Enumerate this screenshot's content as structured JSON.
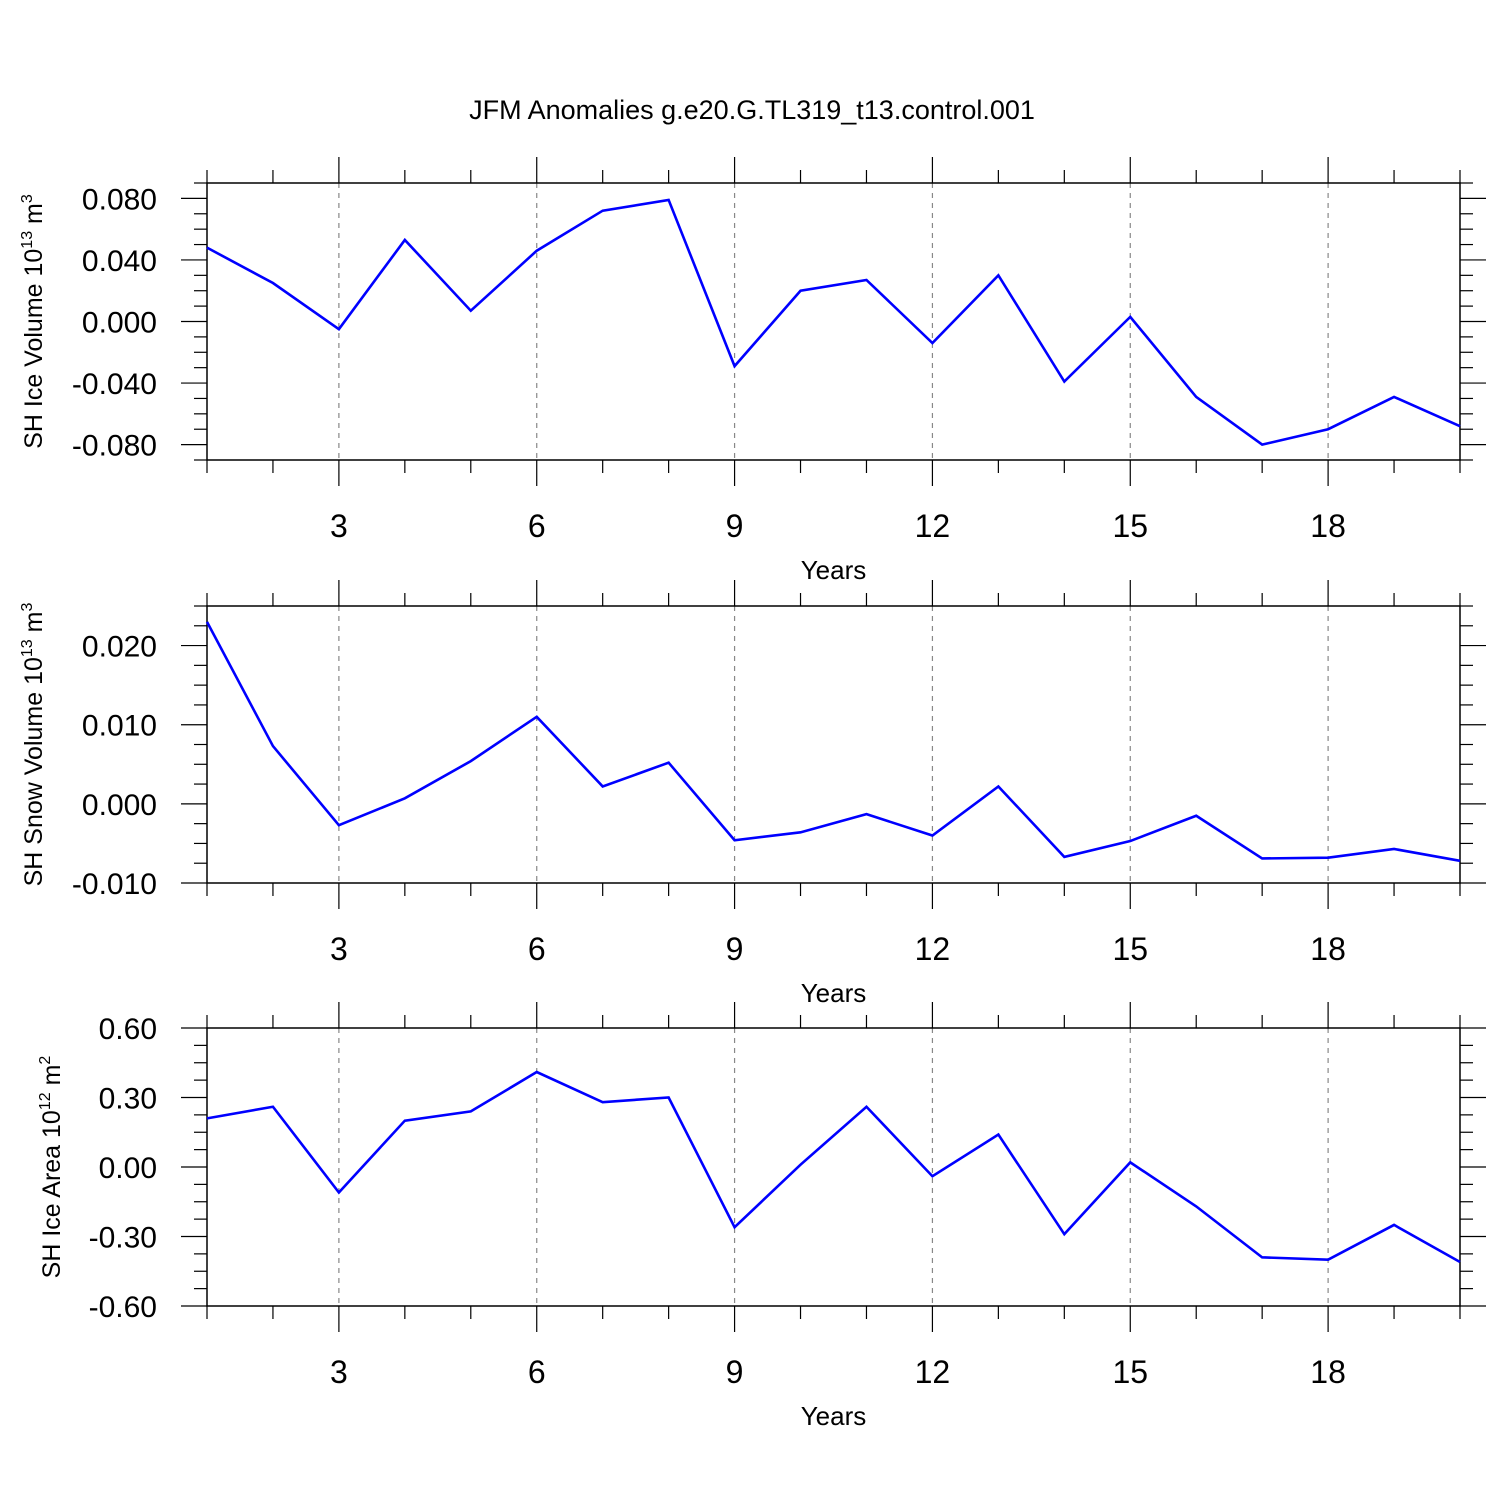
{
  "figure_title": "JFM Anomalies g.e20.G.TL319_t13.control.001",
  "line_color": "#0000ff",
  "chart_data": [
    {
      "type": "line",
      "title": "",
      "xlabel": "Years",
      "ylabel_main": "SH Ice Volume 10",
      "ylabel_exp": "13",
      "ylabel_unit": " m",
      "ylabel_unit_exp": "3",
      "xlim": [
        1,
        20
      ],
      "ylim": [
        -0.09,
        0.09
      ],
      "x_ticks": [
        3,
        6,
        9,
        12,
        15,
        18
      ],
      "x_tick_labels": [
        "3",
        "6",
        "9",
        "12",
        "15",
        "18"
      ],
      "y_ticks": [
        -0.08,
        -0.04,
        0.0,
        0.04,
        0.08
      ],
      "y_tick_labels": [
        "-0.080",
        "-0.040",
        "0.000",
        "0.040",
        "0.080"
      ],
      "grid": "x-dashed",
      "x": [
        1,
        2,
        3,
        4,
        5,
        6,
        7,
        8,
        9,
        10,
        11,
        12,
        13,
        14,
        15,
        16,
        17,
        18,
        19,
        20
      ],
      "series": [
        {
          "values": [
            0.048,
            0.025,
            -0.005,
            0.053,
            0.007,
            0.046,
            0.072,
            0.079,
            -0.029,
            0.02,
            0.027,
            -0.014,
            0.03,
            -0.039,
            0.003,
            -0.049,
            -0.08,
            -0.07,
            -0.049,
            -0.068
          ]
        }
      ]
    },
    {
      "type": "line",
      "title": "",
      "xlabel": "Years",
      "ylabel_main": "SH Snow Volume 10",
      "ylabel_exp": "13",
      "ylabel_unit": " m",
      "ylabel_unit_exp": "3",
      "xlim": [
        1,
        20
      ],
      "ylim": [
        -0.01,
        0.025
      ],
      "x_ticks": [
        3,
        6,
        9,
        12,
        15,
        18
      ],
      "x_tick_labels": [
        "3",
        "6",
        "9",
        "12",
        "15",
        "18"
      ],
      "y_ticks": [
        -0.01,
        0.0,
        0.01,
        0.02
      ],
      "y_tick_labels": [
        "-0.010",
        "0.000",
        "0.010",
        "0.020"
      ],
      "grid": "x-dashed",
      "x": [
        1,
        2,
        3,
        4,
        5,
        6,
        7,
        8,
        9,
        10,
        11,
        12,
        13,
        14,
        15,
        16,
        17,
        18,
        19,
        20
      ],
      "series": [
        {
          "values": [
            0.023,
            0.0073,
            -0.0027,
            0.0007,
            0.0054,
            0.011,
            0.0022,
            0.0052,
            -0.0046,
            -0.0036,
            -0.0013,
            -0.004,
            0.0022,
            -0.0067,
            -0.0047,
            -0.0015,
            -0.0069,
            -0.0068,
            -0.0057,
            -0.0072
          ]
        }
      ]
    },
    {
      "type": "line",
      "title": "",
      "xlabel": "Years",
      "ylabel_main": "SH Ice Area 10",
      "ylabel_exp": "12",
      "ylabel_unit": " m",
      "ylabel_unit_exp": "2",
      "xlim": [
        1,
        20
      ],
      "ylim": [
        -0.6,
        0.6
      ],
      "x_ticks": [
        3,
        6,
        9,
        12,
        15,
        18
      ],
      "x_tick_labels": [
        "3",
        "6",
        "9",
        "12",
        "15",
        "18"
      ],
      "y_ticks": [
        -0.6,
        -0.3,
        0.0,
        0.3,
        0.6
      ],
      "y_tick_labels": [
        "-0.60",
        "-0.30",
        "0.00",
        "0.30",
        "0.60"
      ],
      "grid": "x-dashed",
      "x": [
        1,
        2,
        3,
        4,
        5,
        6,
        7,
        8,
        9,
        10,
        11,
        12,
        13,
        14,
        15,
        16,
        17,
        18,
        19,
        20
      ],
      "series": [
        {
          "values": [
            0.21,
            0.26,
            -0.11,
            0.2,
            0.24,
            0.41,
            0.28,
            0.3,
            -0.26,
            0.01,
            0.26,
            -0.04,
            0.14,
            -0.29,
            0.02,
            -0.17,
            -0.39,
            -0.4,
            -0.25,
            -0.41
          ]
        }
      ]
    }
  ]
}
